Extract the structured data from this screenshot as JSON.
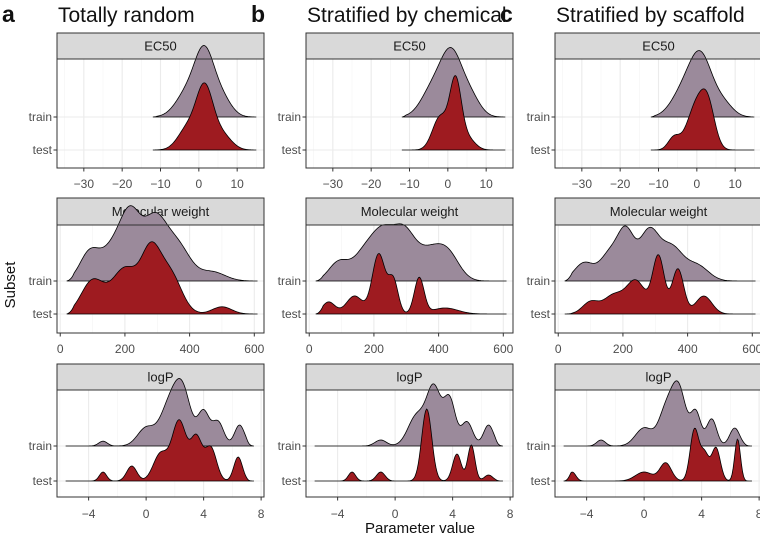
{
  "figure": {
    "y_axis_title": "Subset",
    "x_axis_title": "Parameter value",
    "colors": {
      "train": "#9b8a9b",
      "test": "#9e1b20",
      "strip_bg": "#d9d9d9",
      "panel_border": "#333333",
      "grid": "#ebebeb"
    }
  },
  "chart_data": [
    {
      "panel": "a",
      "title": "Totally random",
      "type": "ridgeline",
      "facets": [
        {
          "label": "EC50",
          "xlim": [
            -37,
            17
          ],
          "ticks": [
            -30,
            -20,
            -10,
            0,
            10
          ],
          "tick_labels": [
            "−30",
            "−20",
            "−10",
            "0",
            "10"
          ],
          "series": [
            {
              "name": "train",
              "range": [
                -12,
                15
              ],
              "peaks": [
                [
                  1.5,
                  1.0,
                  2.5
                ],
                [
                  -3,
                  0.4,
                  3
                ],
                [
                  6,
                  0.3,
                  2.5
                ]
              ]
            },
            {
              "name": "test",
              "range": [
                -12,
                15
              ],
              "peaks": [
                [
                  1.5,
                  1.0,
                  2.2
                ],
                [
                  -3,
                  0.35,
                  2.5
                ],
                [
                  6,
                  0.25,
                  2.5
                ]
              ]
            }
          ]
        },
        {
          "label": "Molecular weight",
          "xlim": [
            -10,
            630
          ],
          "ticks": [
            0,
            200,
            400,
            600
          ],
          "tick_labels": [
            "0",
            "200",
            "400",
            "600"
          ],
          "series": [
            {
              "name": "train",
              "range": [
                20,
                610
              ],
              "peaks": [
                [
                  90,
                  0.45,
                  30
                ],
                [
                  170,
                  0.6,
                  40
                ],
                [
                  220,
                  0.85,
                  30
                ],
                [
                  290,
                  0.95,
                  35
                ],
                [
                  360,
                  0.6,
                  40
                ],
                [
                  470,
                  0.15,
                  40
                ]
              ]
            },
            {
              "name": "test",
              "range": [
                20,
                610
              ],
              "peaks": [
                [
                  100,
                  0.55,
                  35
                ],
                [
                  200,
                  0.75,
                  40
                ],
                [
                  280,
                  0.95,
                  30
                ],
                [
                  340,
                  0.65,
                  35
                ],
                [
                  500,
                  0.12,
                  30
                ]
              ]
            }
          ]
        },
        {
          "label": "logP",
          "xlim": [
            -6.2,
            8.2
          ],
          "ticks": [
            -4,
            0,
            4,
            8
          ],
          "tick_labels": [
            "−4",
            "0",
            "4",
            "8"
          ],
          "series": [
            {
              "name": "train",
              "range": [
                -5.6,
                7.5
              ],
              "peaks": [
                [
                  -3,
                  0.08,
                  0.3
                ],
                [
                  0,
                  0.3,
                  0.6
                ],
                [
                  1.5,
                  0.55,
                  0.6
                ],
                [
                  2.5,
                  0.95,
                  0.6
                ],
                [
                  4,
                  0.55,
                  0.4
                ],
                [
                  5,
                  0.4,
                  0.4
                ],
                [
                  6.5,
                  0.35,
                  0.35
                ]
              ]
            },
            {
              "name": "test",
              "range": [
                -5.6,
                7.5
              ],
              "peaks": [
                [
                  -3,
                  0.15,
                  0.25
                ],
                [
                  -1,
                  0.25,
                  0.35
                ],
                [
                  1,
                  0.45,
                  0.5
                ],
                [
                  2.3,
                  1.0,
                  0.5
                ],
                [
                  3.5,
                  0.7,
                  0.4
                ],
                [
                  4.5,
                  0.55,
                  0.4
                ],
                [
                  6.4,
                  0.4,
                  0.3
                ]
              ]
            }
          ]
        }
      ]
    },
    {
      "panel": "b",
      "title": "Stratified by chemical",
      "type": "ridgeline",
      "facets": [
        {
          "label": "EC50",
          "xlim": [
            -37,
            17
          ],
          "ticks": [
            -30,
            -20,
            -10,
            0,
            10
          ],
          "tick_labels": [
            "−30",
            "−20",
            "−10",
            "0",
            "10"
          ],
          "series": [
            {
              "name": "train",
              "range": [
                -12,
                15
              ],
              "peaks": [
                [
                  1,
                  1.0,
                  2.8
                ],
                [
                  -4,
                  0.45,
                  3
                ],
                [
                  6,
                  0.3,
                  2.5
                ]
              ]
            },
            {
              "name": "test",
              "range": [
                -12,
                15
              ],
              "peaks": [
                [
                  2,
                  1.1,
                  1.5
                ],
                [
                  -2,
                  0.55,
                  2
                ],
                [
                  5,
                  0.2,
                  2
                ]
              ]
            }
          ]
        },
        {
          "label": "Molecular weight",
          "xlim": [
            -10,
            630
          ],
          "ticks": [
            0,
            200,
            400,
            600
          ],
          "tick_labels": [
            "0",
            "200",
            "400",
            "600"
          ],
          "series": [
            {
              "name": "train",
              "range": [
                20,
                610
              ],
              "peaks": [
                [
                  90,
                  0.3,
                  30
                ],
                [
                  180,
                  0.55,
                  40
                ],
                [
                  230,
                  0.5,
                  30
                ],
                [
                  290,
                  0.8,
                  35
                ],
                [
                  370,
                  0.45,
                  40
                ],
                [
                  430,
                  0.4,
                  35
                ]
              ]
            },
            {
              "name": "test",
              "range": [
                20,
                610
              ],
              "peaks": [
                [
                  60,
                  0.2,
                  20
                ],
                [
                  140,
                  0.3,
                  25
                ],
                [
                  215,
                  1.0,
                  20
                ],
                [
                  260,
                  0.55,
                  15
                ],
                [
                  340,
                  0.6,
                  15
                ],
                [
                  420,
                  0.1,
                  40
                ]
              ]
            }
          ]
        },
        {
          "label": "logP",
          "xlim": [
            -6.2,
            8.2
          ],
          "ticks": [
            -4,
            0,
            4,
            8
          ],
          "tick_labels": [
            "−4",
            "0",
            "4",
            "8"
          ],
          "series": [
            {
              "name": "train",
              "range": [
                -5.6,
                7.5
              ],
              "peaks": [
                [
                  -1,
                  0.1,
                  0.4
                ],
                [
                  1.5,
                  0.5,
                  0.6
                ],
                [
                  2.7,
                  0.95,
                  0.5
                ],
                [
                  3.8,
                  0.75,
                  0.4
                ],
                [
                  5,
                  0.4,
                  0.4
                ],
                [
                  6.5,
                  0.35,
                  0.35
                ]
              ]
            },
            {
              "name": "test",
              "range": [
                -5.6,
                7.5
              ],
              "peaks": [
                [
                  -3,
                  0.15,
                  0.25
                ],
                [
                  -1,
                  0.15,
                  0.3
                ],
                [
                  2.2,
                  1.2,
                  0.35
                ],
                [
                  4.3,
                  0.45,
                  0.3
                ],
                [
                  5.3,
                  0.6,
                  0.25
                ],
                [
                  6.5,
                  0.1,
                  0.3
                ]
              ]
            }
          ]
        }
      ]
    },
    {
      "panel": "c",
      "title": "Stratified by scaffold",
      "type": "ridgeline",
      "facets": [
        {
          "label": "EC50",
          "xlim": [
            -37,
            17
          ],
          "ticks": [
            -30,
            -20,
            -10,
            0,
            10
          ],
          "tick_labels": [
            "−30",
            "−20",
            "−10",
            "0",
            "10"
          ],
          "series": [
            {
              "name": "train",
              "range": [
                -12,
                15
              ],
              "peaks": [
                [
                  1,
                  1.0,
                  3
                ],
                [
                  -4,
                  0.35,
                  3
                ],
                [
                  7,
                  0.2,
                  2.5
                ]
              ]
            },
            {
              "name": "test",
              "range": [
                -12,
                15
              ],
              "peaks": [
                [
                  0,
                  0.75,
                  2.5
                ],
                [
                  3,
                  0.55,
                  1.8
                ],
                [
                  -6,
                  0.2,
                  1.5
                ]
              ]
            }
          ]
        },
        {
          "label": "Molecular weight",
          "xlim": [
            -10,
            630
          ],
          "ticks": [
            0,
            200,
            400,
            600
          ],
          "tick_labels": [
            "0",
            "200",
            "400",
            "600"
          ],
          "series": [
            {
              "name": "train",
              "range": [
                20,
                610
              ],
              "peaks": [
                [
                  80,
                  0.3,
                  30
                ],
                [
                  160,
                  0.45,
                  30
                ],
                [
                  210,
                  0.75,
                  25
                ],
                [
                  280,
                  0.8,
                  30
                ],
                [
                  350,
                  0.55,
                  35
                ],
                [
                  430,
                  0.25,
                  35
                ]
              ]
            },
            {
              "name": "test",
              "range": [
                20,
                610
              ],
              "peaks": [
                [
                  100,
                  0.2,
                  25
                ],
                [
                  170,
                  0.3,
                  30
                ],
                [
                  240,
                  0.55,
                  30
                ],
                [
                  310,
                  0.95,
                  18
                ],
                [
                  370,
                  0.75,
                  18
                ],
                [
                  450,
                  0.3,
                  25
                ]
              ]
            }
          ]
        },
        {
          "label": "logP",
          "xlim": [
            -6.2,
            8.2
          ],
          "ticks": [
            -4,
            0,
            4,
            8
          ],
          "tick_labels": [
            "−4",
            "0",
            "4",
            "8"
          ],
          "series": [
            {
              "name": "train",
              "range": [
                -5.6,
                7.5
              ],
              "peaks": [
                [
                  -3,
                  0.1,
                  0.3
                ],
                [
                  0,
                  0.3,
                  0.6
                ],
                [
                  1.5,
                  0.55,
                  0.5
                ],
                [
                  2.4,
                  0.95,
                  0.5
                ],
                [
                  3.6,
                  0.55,
                  0.35
                ],
                [
                  4.7,
                  0.45,
                  0.35
                ],
                [
                  6.3,
                  0.3,
                  0.35
                ]
              ]
            },
            {
              "name": "test",
              "range": [
                -5.6,
                7.5
              ],
              "peaks": [
                [
                  -5,
                  0.15,
                  0.25
                ],
                [
                  0,
                  0.15,
                  0.6
                ],
                [
                  1.5,
                  0.3,
                  0.4
                ],
                [
                  3.5,
                  0.85,
                  0.3
                ],
                [
                  4.2,
                  0.45,
                  0.3
                ],
                [
                  5,
                  0.55,
                  0.3
                ],
                [
                  6.5,
                  0.7,
                  0.2
                ]
              ]
            }
          ]
        }
      ]
    }
  ]
}
